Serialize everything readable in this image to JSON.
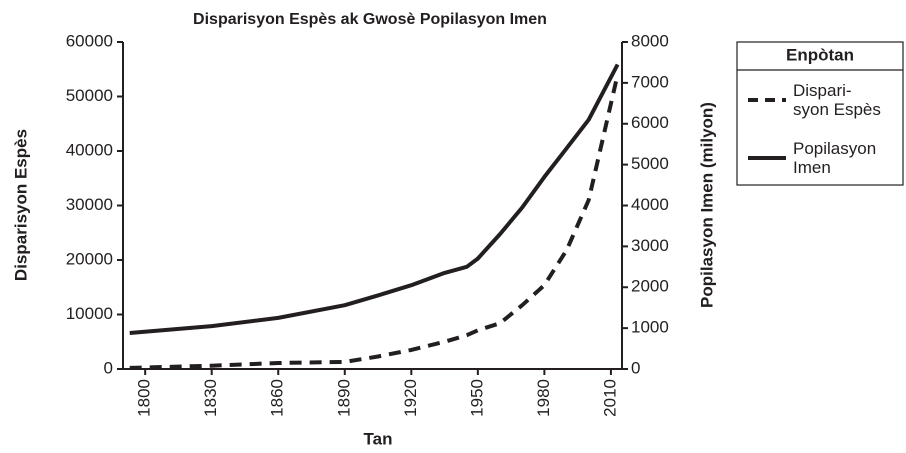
{
  "chart_data": {
    "type": "line",
    "title": "Disparisyon Espès ak Gwosè Popilasyon Imen",
    "xlabel": "Tan",
    "ylabel": "Disparisyon Espès",
    "y2label": "Popilasyon Imen (milyon)",
    "x": [
      1793,
      1830,
      1860,
      1890,
      1905,
      1920,
      1935,
      1945,
      1950,
      1960,
      1970,
      1980,
      1990,
      2000,
      2013
    ],
    "series": [
      {
        "name": "Dispari-\nsyon Espès",
        "color": "#231f20",
        "dash": true,
        "values": [
          200,
          600,
          1100,
          1300,
          2300,
          3500,
          5000,
          6200,
          7100,
          8400,
          11700,
          15400,
          21800,
          31000,
          54000
        ]
      },
      {
        "name": "Popilasyon\nImen",
        "color": "#231f20",
        "dash": false,
        "axis": "y2",
        "values": [
          880,
          1050,
          1250,
          1560,
          1800,
          2050,
          2350,
          2500,
          2700,
          3300,
          3950,
          4700,
          5400,
          6100,
          7450
        ]
      }
    ],
    "legend_title": "Enpòtan",
    "legend": "outside-right",
    "xlim": [
      1790,
      2015
    ],
    "xticks": [
      1800,
      1830,
      1860,
      1890,
      1920,
      1950,
      1980,
      2010
    ],
    "ylim": [
      0,
      60000
    ],
    "yticks": [
      0,
      10000,
      20000,
      30000,
      40000,
      50000,
      60000
    ],
    "y2lim": [
      0,
      8000
    ],
    "y2ticks": [
      0,
      1000,
      2000,
      3000,
      4000,
      5000,
      6000,
      7000,
      8000
    ]
  }
}
